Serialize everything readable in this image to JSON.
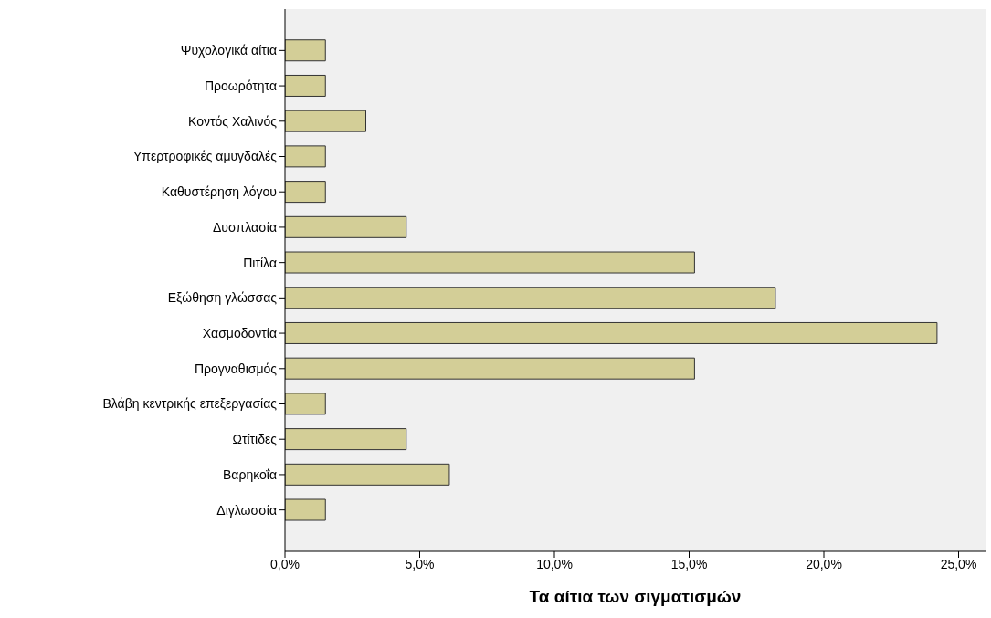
{
  "chart_data": {
    "type": "bar",
    "orientation": "horizontal",
    "xlabel": "Τα αίτια των σιγματισμών",
    "categories": [
      "Ψυχολογικά αίτια",
      "Προωρότητα",
      "Κοντός Χαλινός",
      "Υπερτροφικές αμυγδαλές",
      "Καθυστέρηση λόγου",
      "Δυσπλασία",
      "Πιτίλα",
      "Εξώθηση γλώσσας",
      "Χασμοδοντία",
      "Προγναθισμός",
      "Βλάβη κεντρικής επεξεργασίας",
      "Ωτίτιδες",
      "Βαρηκοΐα",
      "Διγλωσσία"
    ],
    "values": [
      1.5,
      1.5,
      3.0,
      1.5,
      1.5,
      4.5,
      15.2,
      18.2,
      24.2,
      15.2,
      1.5,
      4.5,
      6.1,
      1.5
    ],
    "color": "#d3ce97",
    "xlim": [
      0,
      26
    ],
    "xticks": [
      {
        "value": 0,
        "label": "0,0%"
      },
      {
        "value": 5,
        "label": "5,0%"
      },
      {
        "value": 10,
        "label": "10,0%"
      },
      {
        "value": 15,
        "label": "15,0%"
      },
      {
        "value": 20,
        "label": "20,0%"
      },
      {
        "value": 25,
        "label": "25,0%"
      }
    ]
  }
}
